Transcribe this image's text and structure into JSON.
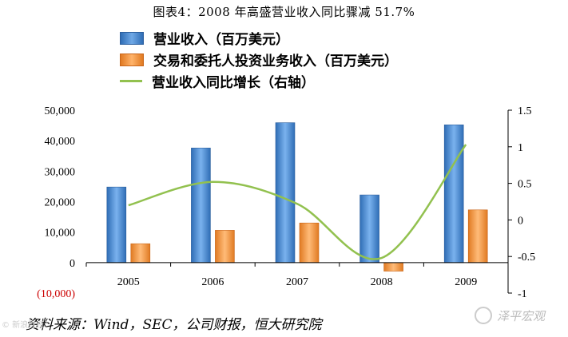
{
  "title": "图表4：2008 年高盛营业收入同比骤减 51.7%",
  "legend": [
    {
      "label": "营业收入（百万美元）",
      "kind": "bar1"
    },
    {
      "label": "交易和委托人投资业务收入（百万美元）",
      "kind": "bar2"
    },
    {
      "label": "营业收入同比增长（右轴）",
      "kind": "line"
    }
  ],
  "source": "资料来源：Wind，SEC，公司财报，恒大研究院",
  "watermark": "泽平宏观",
  "ticker": "© 新浪财经",
  "colors": {
    "bar1": "#4a8ad4",
    "bar2": "#f59a43",
    "line": "#92c14f",
    "negative": "#cc0000"
  },
  "chart_data": {
    "type": "bar",
    "categories": [
      "2005",
      "2006",
      "2007",
      "2008",
      "2009"
    ],
    "series": [
      {
        "name": "营业收入（百万美元）",
        "type": "bar",
        "axis": "left",
        "values": [
          24800,
          37600,
          45900,
          22200,
          45200
        ]
      },
      {
        "name": "交易和委托人投资业务收入（百万美元）",
        "type": "bar",
        "axis": "left",
        "values": [
          6200,
          10600,
          13000,
          -2800,
          17300
        ]
      },
      {
        "name": "营业收入同比增长（右轴）",
        "type": "line",
        "axis": "right",
        "values": [
          0.2,
          0.52,
          0.22,
          -0.52,
          1.03
        ]
      }
    ],
    "y_left": {
      "min": -10000,
      "max": 50000,
      "ticks": [
        50000,
        40000,
        30000,
        20000,
        10000,
        0,
        -10000
      ],
      "tick_labels": [
        "50,000",
        "40,000",
        "30,000",
        "20,000",
        "10,000",
        "0",
        "(10,000)"
      ]
    },
    "y_right": {
      "min": -1,
      "max": 1.5,
      "ticks": [
        1.5,
        1,
        0.5,
        0,
        -0.5,
        -1
      ],
      "tick_labels": [
        "1.5",
        "1",
        "0.5",
        "0",
        "-0.5",
        "-1"
      ]
    },
    "grid": false
  }
}
